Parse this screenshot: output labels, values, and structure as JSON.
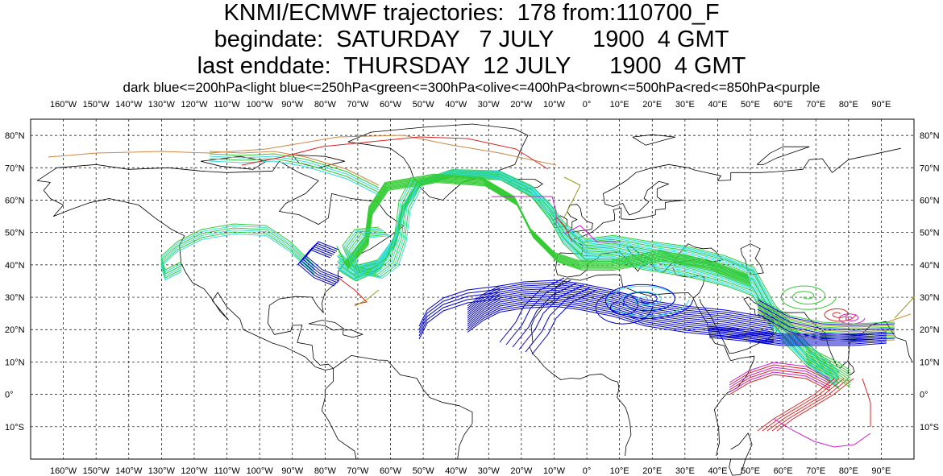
{
  "title": {
    "line1": "KNMI/ECMWF trajectories:  178 from:110700_F",
    "line2": "begindate:  SATURDAY   7 JULY      1900  4 GMT",
    "line3": "last enddate:  THURSDAY  12 JULY      1900  4 GMT"
  },
  "legend_text": "dark blue<=200hPa<light blue<=250hPa<green<=300hPa<olive<=400hPa<brown<=500hPa<red<=850hPa<purple",
  "level_colors": {
    "dark_blue": "#0000cc",
    "light_blue": "#33dddd",
    "green": "#33cc33",
    "olive": "#999922",
    "brown": "#cc8844",
    "red": "#dd2222",
    "purple": "#cc22cc"
  },
  "map": {
    "projection": "equirectangular",
    "lon_range": [
      -170,
      100
    ],
    "lat_range": [
      -20,
      85
    ],
    "grid": "dashed",
    "longitude_labels": [
      "160°W",
      "150°W",
      "140°W",
      "130°W",
      "120°W",
      "110°W",
      "100°W",
      "90°W",
      "80°W",
      "70°W",
      "60°W",
      "50°W",
      "40°W",
      "30°W",
      "20°W",
      "10°W",
      "0°",
      "10°E",
      "20°E",
      "30°E",
      "40°E",
      "50°E",
      "60°E",
      "70°E",
      "80°E",
      "90°E"
    ],
    "latitude_labels": [
      "80°N",
      "70°N",
      "60°N",
      "50°N",
      "40°N",
      "30°N",
      "20°N",
      "10°N",
      "0°",
      "10°S"
    ]
  }
}
